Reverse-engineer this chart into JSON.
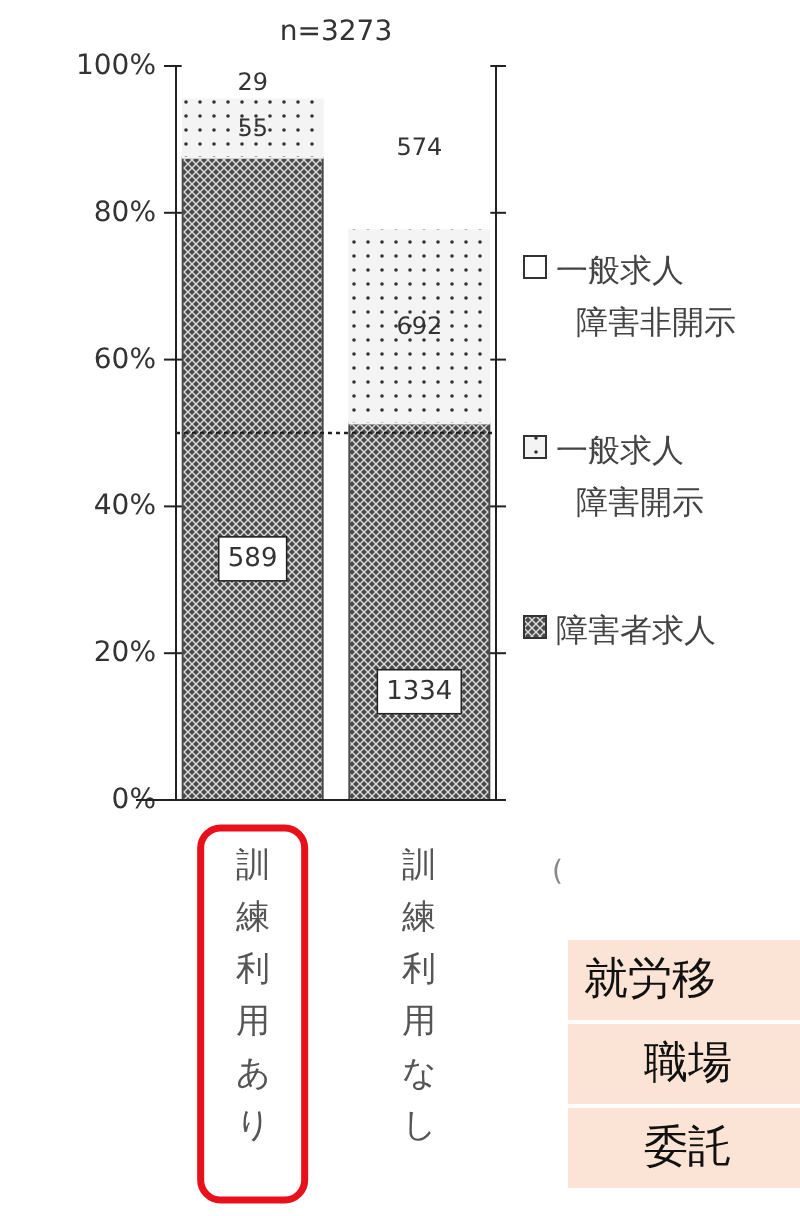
{
  "chart_data": {
    "type": "bar",
    "stacked": true,
    "title": "n=3273",
    "categories": [
      "訓練利用あり",
      "訓練利用なし"
    ],
    "series": [
      {
        "name": "障害者求人",
        "color": "#4a4a4a",
        "values": [
          87.5,
          51.3
        ]
      },
      {
        "name": "一般求人障害開示",
        "color": "#f4f4f4",
        "values": [
          8.2,
          26.6
        ]
      },
      {
        "name": "一般求人障害非開示",
        "color": "#ffffff",
        "values": [
          4.3,
          22.1
        ]
      }
    ],
    "ylim": [
      0,
      100
    ],
    "yticks": [
      {
        "value": 0,
        "label": "0%"
      },
      {
        "value": 20,
        "label": "20%"
      },
      {
        "value": 40,
        "label": "40%"
      },
      {
        "value": 60,
        "label": "60%"
      },
      {
        "value": 80,
        "label": "80%"
      },
      {
        "value": 100,
        "label": "100%"
      }
    ],
    "ref_lines": [
      {
        "axis": "y",
        "value": 50,
        "line_style": "dotted",
        "color": "#222222"
      }
    ],
    "legend": "right",
    "grid": false,
    "annotations": [
      "(",
      "就労移",
      "職場",
      "委託",
      "589",
      "1334",
      "55",
      "692",
      "29",
      "574"
    ]
  }
}
